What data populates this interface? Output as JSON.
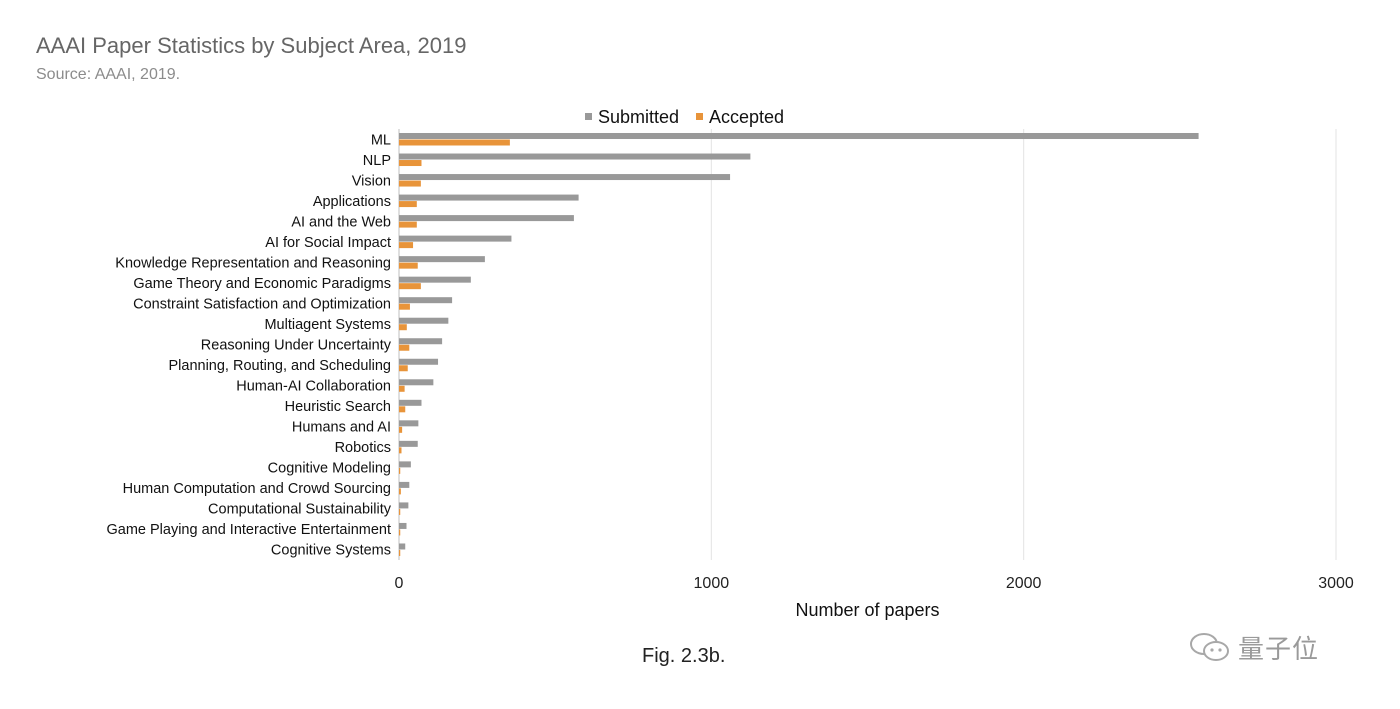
{
  "header": {
    "title": "AAAI Paper Statistics by Subject Area, 2019",
    "subtitle": "Source: AAAI, 2019."
  },
  "caption": "Fig. 2.3b.",
  "watermark": {
    "icon": "wechat-icon",
    "label": "量子位"
  },
  "chart_data": {
    "type": "bar",
    "orientation": "horizontal",
    "categories": [
      "ML",
      "NLP",
      "Vision",
      "Applications",
      "AI and the Web",
      "AI for Social Impact",
      "Knowledge Representation and Reasoning",
      "Game Theory and Economic Paradigms",
      "Constraint Satisfaction and Optimization",
      "Multiagent Systems",
      "Reasoning Under Uncertainty",
      "Planning, Routing, and Scheduling",
      "Human-AI Collaboration",
      "Heuristic Search",
      "Humans and AI",
      "Robotics",
      "Cognitive Modeling",
      "Human Computation and Crowd Sourcing",
      "Computational Sustainability",
      "Game Playing and Interactive Entertainment",
      "Cognitive Systems"
    ],
    "series": [
      {
        "name": "Submitted",
        "color": "#999999",
        "values": [
          2560,
          1125,
          1060,
          575,
          560,
          360,
          275,
          230,
          170,
          158,
          138,
          125,
          110,
          72,
          62,
          60,
          38,
          33,
          30,
          24,
          20
        ]
      },
      {
        "name": "Accepted",
        "color": "#e8943a",
        "values": [
          355,
          72,
          70,
          57,
          57,
          45,
          60,
          70,
          35,
          25,
          33,
          28,
          18,
          20,
          10,
          8,
          4,
          6,
          4,
          4,
          4
        ]
      }
    ],
    "xlabel": "Number of papers",
    "ylabel": "",
    "xlim": [
      0,
      3000
    ],
    "xticks": [
      0,
      1000,
      2000,
      3000
    ],
    "grid": "vertical",
    "legend": "top"
  }
}
